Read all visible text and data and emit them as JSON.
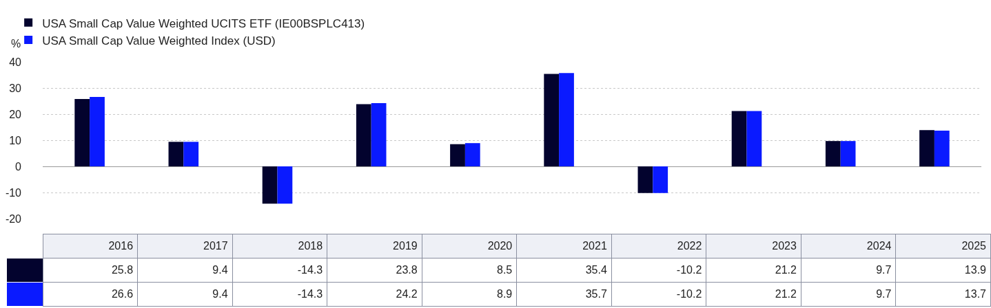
{
  "chart_data": {
    "type": "bar",
    "ylabel": "%",
    "categories": [
      "2016",
      "2017",
      "2018",
      "2019",
      "2020",
      "2021",
      "2022",
      "2023",
      "2024",
      "2025"
    ],
    "series": [
      {
        "name": "USA Small Cap Value Weighted UCITS ETF (IE00BSPLC413)",
        "color": "#03032e",
        "values": [
          25.8,
          9.4,
          -14.3,
          23.8,
          8.5,
          35.4,
          -10.2,
          21.2,
          9.7,
          13.9
        ]
      },
      {
        "name": "USA Small Cap Value Weighted Index (USD)",
        "color": "#0a1aff",
        "values": [
          26.6,
          9.4,
          -14.3,
          24.2,
          8.9,
          35.7,
          -10.2,
          21.2,
          9.7,
          13.7
        ]
      }
    ],
    "ylim": [
      -20,
      40
    ],
    "yticks": [
      -20,
      -10,
      0,
      10,
      20,
      30,
      40
    ],
    "grid": "y",
    "legend": "top left",
    "tick_labels": "y",
    "data_labels": true
  }
}
